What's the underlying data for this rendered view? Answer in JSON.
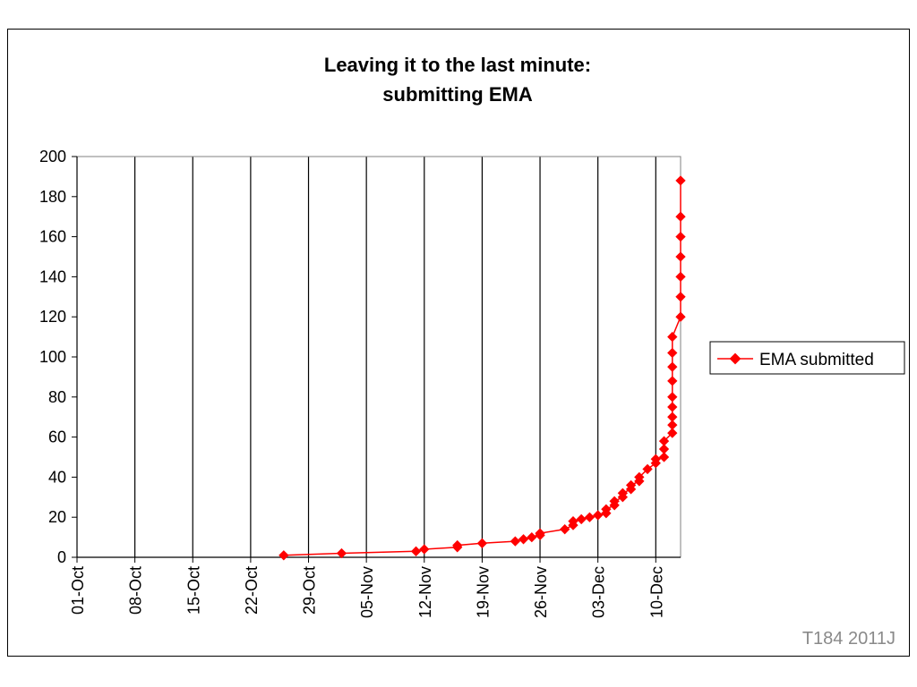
{
  "chart_data": {
    "type": "line",
    "title_lines": [
      "Leaving it to the last minute:",
      "submitting EMA"
    ],
    "xlabel": "",
    "ylabel": "",
    "x_ticks": [
      "01-Oct",
      "08-Oct",
      "15-Oct",
      "22-Oct",
      "29-Oct",
      "05-Nov",
      "12-Nov",
      "19-Nov",
      "26-Nov",
      "03-Dec",
      "10-Dec"
    ],
    "x_range": [
      "2011-10-01",
      "2011-12-13"
    ],
    "ylim": [
      0,
      200
    ],
    "y_ticks": [
      0,
      20,
      40,
      60,
      80,
      100,
      120,
      140,
      160,
      180,
      200
    ],
    "grid": "vertical lines at x ticks",
    "legend_position": "right",
    "series": [
      {
        "name": "EMA submitted",
        "color": "#ff0000",
        "marker": "diamond",
        "x": [
          "2011-10-26",
          "2011-11-02",
          "2011-11-11",
          "2011-11-12",
          "2011-11-16",
          "2011-11-16",
          "2011-11-19",
          "2011-11-23",
          "2011-11-24",
          "2011-11-25",
          "2011-11-26",
          "2011-11-26",
          "2011-11-29",
          "2011-11-30",
          "2011-11-30",
          "2011-12-01",
          "2011-12-02",
          "2011-12-03",
          "2011-12-04",
          "2011-12-04",
          "2011-12-05",
          "2011-12-05",
          "2011-12-06",
          "2011-12-06",
          "2011-12-07",
          "2011-12-07",
          "2011-12-08",
          "2011-12-08",
          "2011-12-09",
          "2011-12-10",
          "2011-12-10",
          "2011-12-11",
          "2011-12-11",
          "2011-12-11",
          "2011-12-12",
          "2011-12-12",
          "2011-12-12",
          "2011-12-12",
          "2011-12-12",
          "2011-12-12",
          "2011-12-12",
          "2011-12-12",
          "2011-12-12",
          "2011-12-13",
          "2011-12-13",
          "2011-12-13",
          "2011-12-13",
          "2011-12-13",
          "2011-12-13",
          "2011-12-13"
        ],
        "y": [
          1,
          2,
          3,
          4,
          5,
          6,
          7,
          8,
          9,
          10,
          11,
          12,
          14,
          16,
          18,
          19,
          20,
          21,
          22,
          24,
          26,
          28,
          30,
          32,
          34,
          36,
          38,
          40,
          44,
          47,
          49,
          50,
          54,
          58,
          62,
          66,
          70,
          75,
          80,
          88,
          95,
          102,
          110,
          120,
          130,
          140,
          150,
          160,
          170,
          188
        ]
      }
    ]
  },
  "legend": {
    "label": "EMA submitted"
  },
  "watermark": "T184 2011J",
  "colors": {
    "series": "#ff0000",
    "axis": "#000000",
    "plot_border": "#808080",
    "watermark": "#8a8a8a"
  }
}
